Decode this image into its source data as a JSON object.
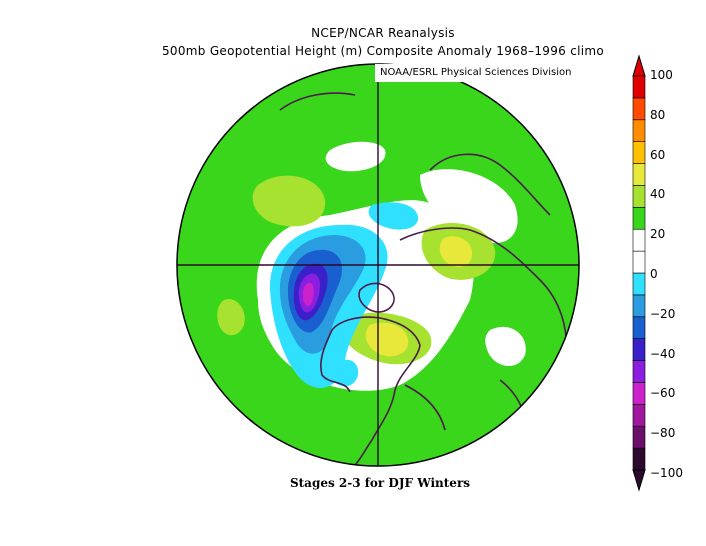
{
  "header": {
    "title_line1": "NCEP/NCAR Reanalysis",
    "title_line2": "500mb Geopotential Height (m) Composite Anomaly 1968–1996 climo",
    "credit": "NOAA/ESRL Physical Sciences Division"
  },
  "caption": "Stages 2-3 for DJF Winters",
  "map": {
    "projection": "north polar stereographic",
    "field": "500mb geopotential height anomaly",
    "units": "m"
  },
  "colorbar": {
    "tick_labels": [
      "100",
      "80",
      "60",
      "40",
      "20",
      "0",
      "−20",
      "−40",
      "−60",
      "−80",
      "−100"
    ],
    "colors": [
      "#2d0a2d",
      "#6b0f6b",
      "#a0169e",
      "#cc22cc",
      "#8b1fe0",
      "#3a20c8",
      "#1a5fd0",
      "#2a9de0",
      "#30e0ff",
      "#ffffff",
      "#ffffff",
      "#39d61b",
      "#a6e22f",
      "#e8e83a",
      "#ffc000",
      "#ff8c00",
      "#ff4a00",
      "#e00000"
    ]
  }
}
